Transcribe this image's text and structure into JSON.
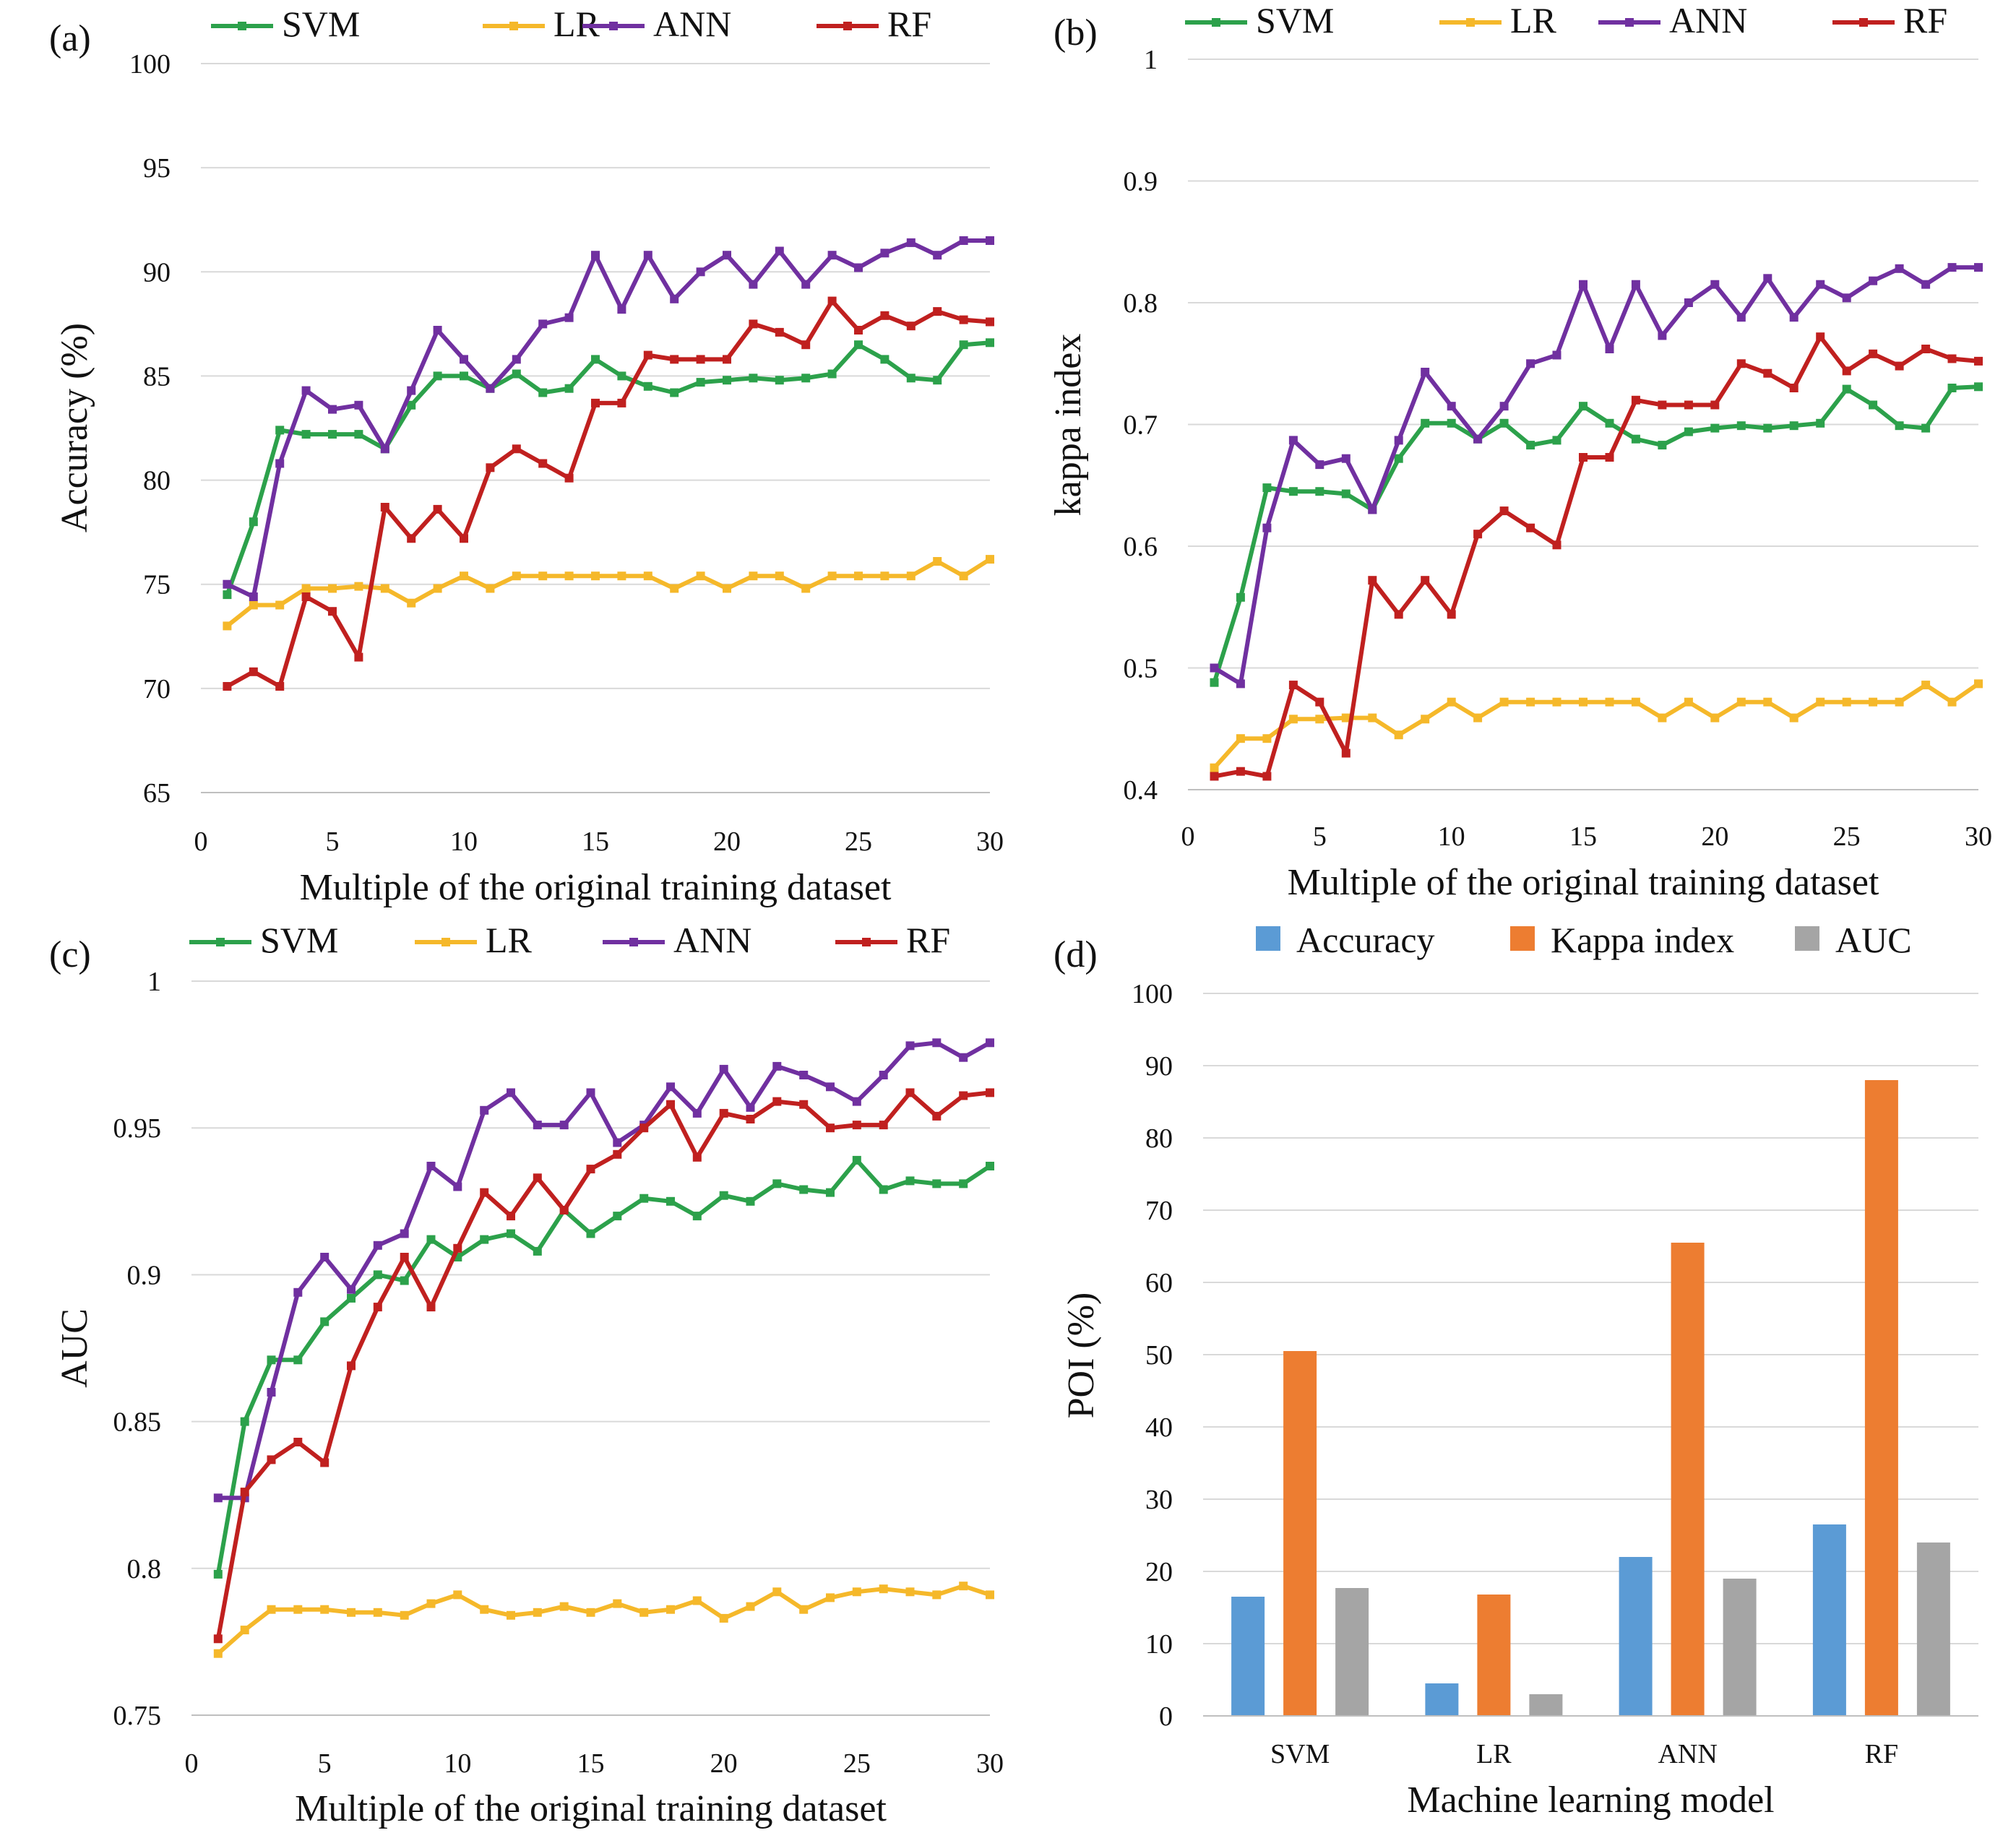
{
  "chart_data": [
    {
      "panel": "(a)",
      "type": "line",
      "xlabel": "Multiple of the original training dataset",
      "ylabel": "Accuracy (%)",
      "xlim": [
        0,
        30
      ],
      "ylim": [
        65,
        100
      ],
      "xticks": [
        "0",
        "5",
        "10",
        "15",
        "20",
        "25",
        "30"
      ],
      "yticks": [
        "65",
        "70",
        "75",
        "80",
        "85",
        "90",
        "95",
        "100"
      ],
      "x": [
        1,
        2,
        3,
        4,
        5,
        6,
        7,
        8,
        9,
        10,
        11,
        12,
        13,
        14,
        15,
        16,
        17,
        18,
        19,
        20,
        21,
        22,
        23,
        24,
        25,
        26,
        27,
        28,
        29,
        30
      ],
      "legend": [
        "SVM",
        "LR",
        "ANN",
        "RF"
      ],
      "series": [
        {
          "name": "SVM",
          "color": "#2ca14b",
          "values": [
            74.5,
            78,
            82.4,
            82.2,
            82.2,
            82.2,
            81.5,
            83.6,
            85,
            85,
            84.4,
            85.1,
            84.2,
            84.4,
            85.8,
            85,
            84.5,
            84.2,
            84.7,
            84.8,
            84.9,
            84.8,
            84.9,
            85.1,
            86.5,
            85.8,
            84.9,
            84.8,
            86.5,
            86.6
          ]
        },
        {
          "name": "LR",
          "color": "#f5b82a",
          "values": [
            73,
            74,
            74,
            74.8,
            74.8,
            74.9,
            74.8,
            74.1,
            74.8,
            75.4,
            74.8,
            75.4,
            75.4,
            75.4,
            75.4,
            75.4,
            75.4,
            74.8,
            75.4,
            74.8,
            75.4,
            75.4,
            74.8,
            75.4,
            75.4,
            75.4,
            75.4,
            76.1,
            75.4,
            76.2
          ]
        },
        {
          "name": "ANN",
          "color": "#7030a0",
          "values": [
            75,
            74.4,
            80.8,
            84.3,
            83.4,
            83.6,
            81.5,
            84.3,
            87.2,
            85.8,
            84.4,
            85.8,
            87.5,
            87.8,
            90.8,
            88.2,
            90.8,
            88.7,
            90,
            90.8,
            89.4,
            91,
            89.4,
            90.8,
            90.2,
            90.9,
            91.4,
            90.8,
            91.5,
            91.5
          ]
        },
        {
          "name": "RF",
          "color": "#c0201f",
          "values": [
            70.1,
            70.8,
            70.1,
            74.4,
            73.7,
            71.5,
            78.7,
            77.2,
            78.6,
            77.2,
            80.6,
            81.5,
            80.8,
            80.1,
            83.7,
            83.7,
            86,
            85.8,
            85.8,
            85.8,
            87.5,
            87.1,
            86.5,
            88.6,
            87.2,
            87.9,
            87.4,
            88.1,
            87.7,
            87.6
          ]
        }
      ]
    },
    {
      "panel": "(b)",
      "type": "line",
      "xlabel": "Multiple of the original training dataset",
      "ylabel": "kappa index",
      "xlim": [
        0,
        30
      ],
      "ylim": [
        0.4,
        1
      ],
      "xticks": [
        "0",
        "5",
        "10",
        "15",
        "20",
        "25",
        "30"
      ],
      "yticks": [
        "0.4",
        "0.5",
        "0.6",
        "0.7",
        "0.8",
        "0.9",
        "1"
      ],
      "x": [
        1,
        2,
        3,
        4,
        5,
        6,
        7,
        8,
        9,
        10,
        11,
        12,
        13,
        14,
        15,
        16,
        17,
        18,
        19,
        20,
        21,
        22,
        23,
        24,
        25,
        26,
        27,
        28,
        29,
        30
      ],
      "legend": [
        "SVM",
        "LR",
        "ANN",
        "RF"
      ],
      "series": [
        {
          "name": "SVM",
          "color": "#2ca14b",
          "values": [
            0.488,
            0.558,
            0.648,
            0.645,
            0.645,
            0.643,
            0.63,
            0.672,
            0.701,
            0.701,
            0.688,
            0.701,
            0.683,
            0.687,
            0.715,
            0.701,
            0.688,
            0.683,
            0.694,
            0.697,
            0.699,
            0.697,
            0.699,
            0.701,
            0.729,
            0.716,
            0.699,
            0.697,
            0.73,
            0.731
          ]
        },
        {
          "name": "LR",
          "color": "#f5b82a",
          "values": [
            0.418,
            0.442,
            0.442,
            0.458,
            0.458,
            0.459,
            0.459,
            0.445,
            0.458,
            0.472,
            0.459,
            0.472,
            0.472,
            0.472,
            0.472,
            0.472,
            0.472,
            0.459,
            0.472,
            0.459,
            0.472,
            0.472,
            0.459,
            0.472,
            0.472,
            0.472,
            0.472,
            0.486,
            0.472,
            0.487
          ]
        },
        {
          "name": "ANN",
          "color": "#7030a0",
          "values": [
            0.5,
            0.487,
            0.615,
            0.687,
            0.667,
            0.672,
            0.63,
            0.687,
            0.743,
            0.715,
            0.688,
            0.715,
            0.75,
            0.757,
            0.815,
            0.762,
            0.815,
            0.773,
            0.8,
            0.815,
            0.788,
            0.82,
            0.788,
            0.815,
            0.804,
            0.818,
            0.828,
            0.815,
            0.829,
            0.829
          ]
        },
        {
          "name": "RF",
          "color": "#c0201f",
          "values": [
            0.411,
            0.415,
            0.411,
            0.486,
            0.472,
            0.43,
            0.572,
            0.544,
            0.572,
            0.544,
            0.61,
            0.629,
            0.615,
            0.601,
            0.673,
            0.673,
            0.72,
            0.716,
            0.716,
            0.716,
            0.75,
            0.742,
            0.73,
            0.772,
            0.744,
            0.758,
            0.748,
            0.762,
            0.754,
            0.752
          ]
        }
      ]
    },
    {
      "panel": "(c)",
      "type": "line",
      "xlabel": "Multiple of the original training dataset",
      "ylabel": "AUC",
      "xlim": [
        0,
        30
      ],
      "ylim": [
        0.75,
        1
      ],
      "xticks": [
        "0",
        "5",
        "10",
        "15",
        "20",
        "25",
        "30"
      ],
      "yticks": [
        "0.75",
        "0.8",
        "0.85",
        "0.9",
        "0.95",
        "1"
      ],
      "x": [
        1,
        2,
        3,
        4,
        5,
        6,
        7,
        8,
        9,
        10,
        11,
        12,
        13,
        14,
        15,
        16,
        17,
        18,
        19,
        20,
        21,
        22,
        23,
        24,
        25,
        26,
        27,
        28,
        29,
        30
      ],
      "legend": [
        "SVM",
        "LR",
        "ANN",
        "RF"
      ],
      "series": [
        {
          "name": "SVM",
          "color": "#2ca14b",
          "values": [
            0.798,
            0.85,
            0.871,
            0.871,
            0.884,
            0.892,
            0.9,
            0.898,
            0.912,
            0.906,
            0.912,
            0.914,
            0.908,
            0.922,
            0.914,
            0.92,
            0.926,
            0.925,
            0.92,
            0.927,
            0.925,
            0.931,
            0.929,
            0.928,
            0.939,
            0.929,
            0.932,
            0.931,
            0.931,
            0.937
          ]
        },
        {
          "name": "LR",
          "color": "#f5b82a",
          "values": [
            0.771,
            0.779,
            0.786,
            0.786,
            0.786,
            0.785,
            0.785,
            0.784,
            0.788,
            0.791,
            0.786,
            0.784,
            0.785,
            0.787,
            0.785,
            0.788,
            0.785,
            0.786,
            0.789,
            0.783,
            0.787,
            0.792,
            0.786,
            0.79,
            0.792,
            0.793,
            0.792,
            0.791,
            0.794,
            0.791
          ]
        },
        {
          "name": "ANN",
          "color": "#7030a0",
          "values": [
            0.824,
            0.824,
            0.86,
            0.894,
            0.906,
            0.895,
            0.91,
            0.914,
            0.937,
            0.93,
            0.956,
            0.962,
            0.951,
            0.951,
            0.962,
            0.945,
            0.951,
            0.964,
            0.955,
            0.97,
            0.957,
            0.971,
            0.968,
            0.964,
            0.959,
            0.968,
            0.978,
            0.979,
            0.974,
            0.979
          ]
        },
        {
          "name": "RF",
          "color": "#c0201f",
          "values": [
            0.776,
            0.826,
            0.837,
            0.843,
            0.836,
            0.869,
            0.889,
            0.906,
            0.889,
            0.909,
            0.928,
            0.92,
            0.933,
            0.922,
            0.936,
            0.941,
            0.95,
            0.958,
            0.94,
            0.955,
            0.953,
            0.959,
            0.958,
            0.95,
            0.951,
            0.951,
            0.962,
            0.954,
            0.961,
            0.962
          ]
        }
      ]
    },
    {
      "panel": "(d)",
      "type": "bar",
      "xlabel": "Machine learning model",
      "ylabel": "POI (%)",
      "ylim": [
        0,
        100
      ],
      "yticks": [
        "0",
        "10",
        "20",
        "30",
        "40",
        "50",
        "60",
        "70",
        "80",
        "90",
        "100"
      ],
      "categories": [
        "SVM",
        "LR",
        "ANN",
        "RF"
      ],
      "legend": [
        "Accuracy",
        "Kappa index",
        "AUC"
      ],
      "series": [
        {
          "name": "Accuracy",
          "color": "#5b9bd5",
          "values": [
            16.5,
            4.5,
            22,
            26.5
          ]
        },
        {
          "name": "Kappa index",
          "color": "#ed7d31",
          "values": [
            50.5,
            16.8,
            65.5,
            88
          ]
        },
        {
          "name": "AUC",
          "color": "#a5a5a5",
          "values": [
            17.7,
            3,
            19,
            24
          ]
        }
      ]
    }
  ]
}
